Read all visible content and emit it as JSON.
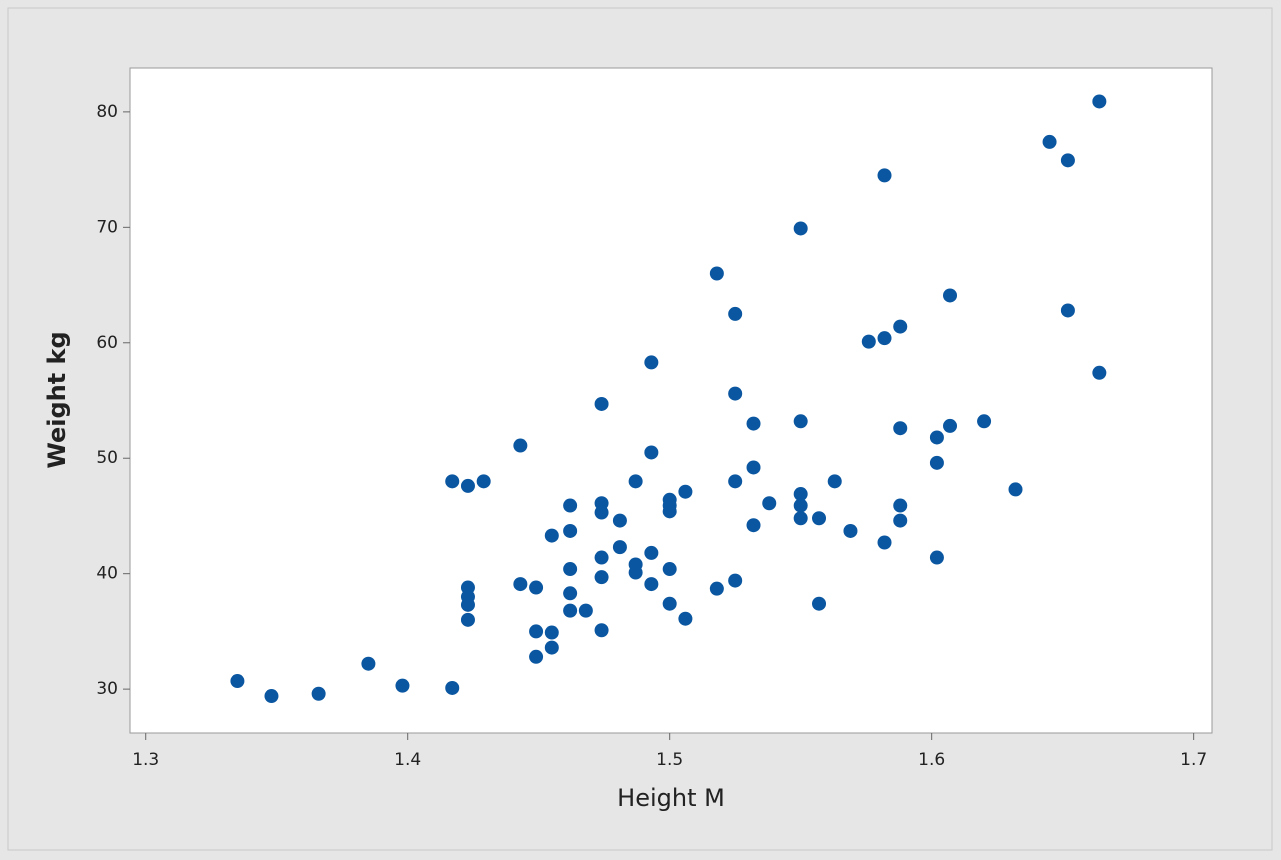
{
  "chart_data": {
    "type": "scatter",
    "x_label": "Height M",
    "y_label": "Weight kg",
    "color": "#0a56a0",
    "grid": false,
    "xlim": [
      1.294,
      1.707
    ],
    "ylim": [
      26.2,
      83.8
    ],
    "xticks": [
      1.3,
      1.4,
      1.5,
      1.6,
      1.7
    ],
    "yticks": [
      30,
      40,
      50,
      60,
      70,
      80
    ],
    "x": [
      1.335,
      1.348,
      1.366,
      1.385,
      1.398,
      1.417,
      1.417,
      1.423,
      1.429,
      1.423,
      1.423,
      1.423,
      1.423,
      1.443,
      1.443,
      1.449,
      1.449,
      1.449,
      1.455,
      1.455,
      1.455,
      1.462,
      1.462,
      1.462,
      1.462,
      1.462,
      1.468,
      1.474,
      1.474,
      1.474,
      1.474,
      1.474,
      1.474,
      1.481,
      1.481,
      1.487,
      1.487,
      1.487,
      1.493,
      1.493,
      1.493,
      1.493,
      1.5,
      1.5,
      1.5,
      1.5,
      1.5,
      1.506,
      1.506,
      1.518,
      1.518,
      1.525,
      1.525,
      1.525,
      1.525,
      1.532,
      1.532,
      1.532,
      1.538,
      1.55,
      1.55,
      1.55,
      1.55,
      1.55,
      1.557,
      1.557,
      1.563,
      1.569,
      1.576,
      1.582,
      1.582,
      1.582,
      1.588,
      1.588,
      1.588,
      1.588,
      1.602,
      1.602,
      1.602,
      1.607,
      1.607,
      1.62,
      1.632,
      1.645,
      1.652,
      1.652,
      1.664,
      1.664
    ],
    "values": [
      30.7,
      29.4,
      29.6,
      32.2,
      30.3,
      30.1,
      48.0,
      47.6,
      48.0,
      38.8,
      38.0,
      37.3,
      36.0,
      51.1,
      39.1,
      38.8,
      35.0,
      32.8,
      43.3,
      34.9,
      33.6,
      45.9,
      43.7,
      40.4,
      38.3,
      36.8,
      36.8,
      54.7,
      46.1,
      45.3,
      41.4,
      39.7,
      35.1,
      44.6,
      42.3,
      48.0,
      40.8,
      40.1,
      58.3,
      50.5,
      41.8,
      39.1,
      46.4,
      45.9,
      45.4,
      40.4,
      37.4,
      47.1,
      36.1,
      66.0,
      38.7,
      62.5,
      55.6,
      48.0,
      39.4,
      53.0,
      49.2,
      44.2,
      46.1,
      69.9,
      53.2,
      46.9,
      45.9,
      44.8,
      44.8,
      37.4,
      48.0,
      43.7,
      60.1,
      74.5,
      60.4,
      42.7,
      61.4,
      52.6,
      45.9,
      44.6,
      51.8,
      49.6,
      41.4,
      64.1,
      52.8,
      53.2,
      47.3,
      77.4,
      75.8,
      62.8,
      80.9,
      57.4
    ]
  }
}
